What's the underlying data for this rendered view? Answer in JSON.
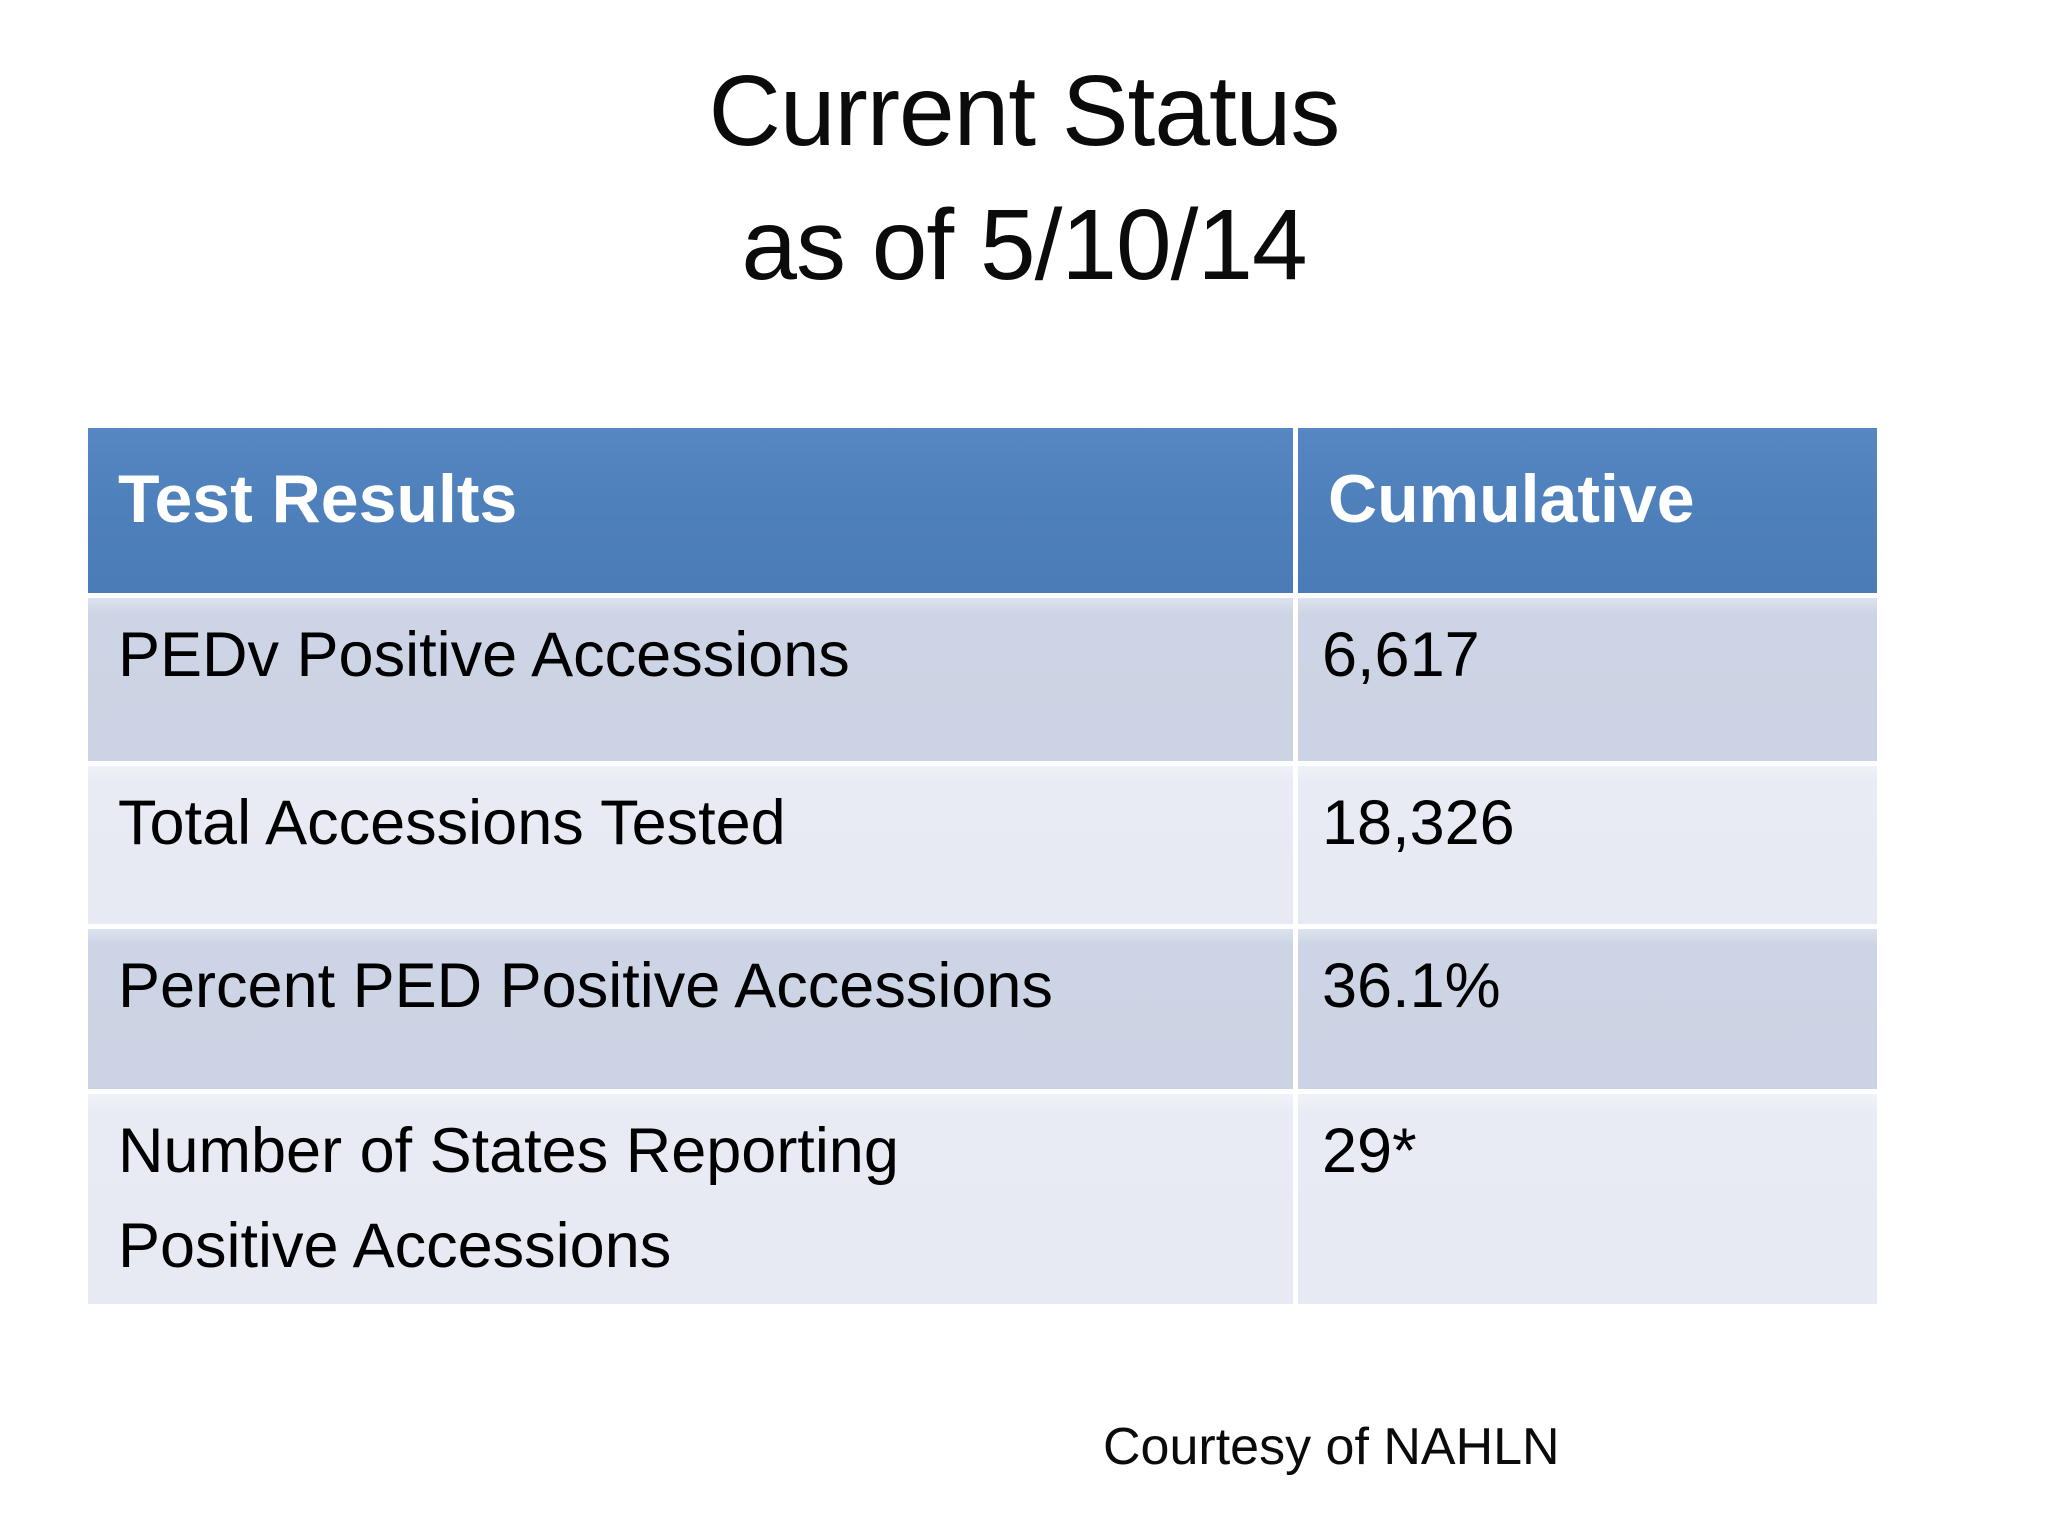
{
  "slide": {
    "title_line1": "Current Status",
    "title_line2": "as of 5/10/14",
    "footer": "Courtesy of NAHLN"
  },
  "table": {
    "headers": [
      "Test Results",
      "Cumulative"
    ],
    "rows": [
      {
        "label": "PEDv Positive Accessions",
        "value": "6,617"
      },
      {
        "label": "Total Accessions Tested",
        "value": "18,326"
      },
      {
        "label": "Percent PED Positive Accessions",
        "value": "36.1%"
      },
      {
        "label": "Number of States Reporting Positive Accessions",
        "value": "29*"
      }
    ]
  },
  "colors": {
    "header_bg": "#4E80BB",
    "header_text": "#FFFFFF",
    "row_odd_bg": "#CCD3E4",
    "row_even_bg": "#E7EAF3",
    "body_text": "#000000",
    "background": "#FFFFFF"
  }
}
